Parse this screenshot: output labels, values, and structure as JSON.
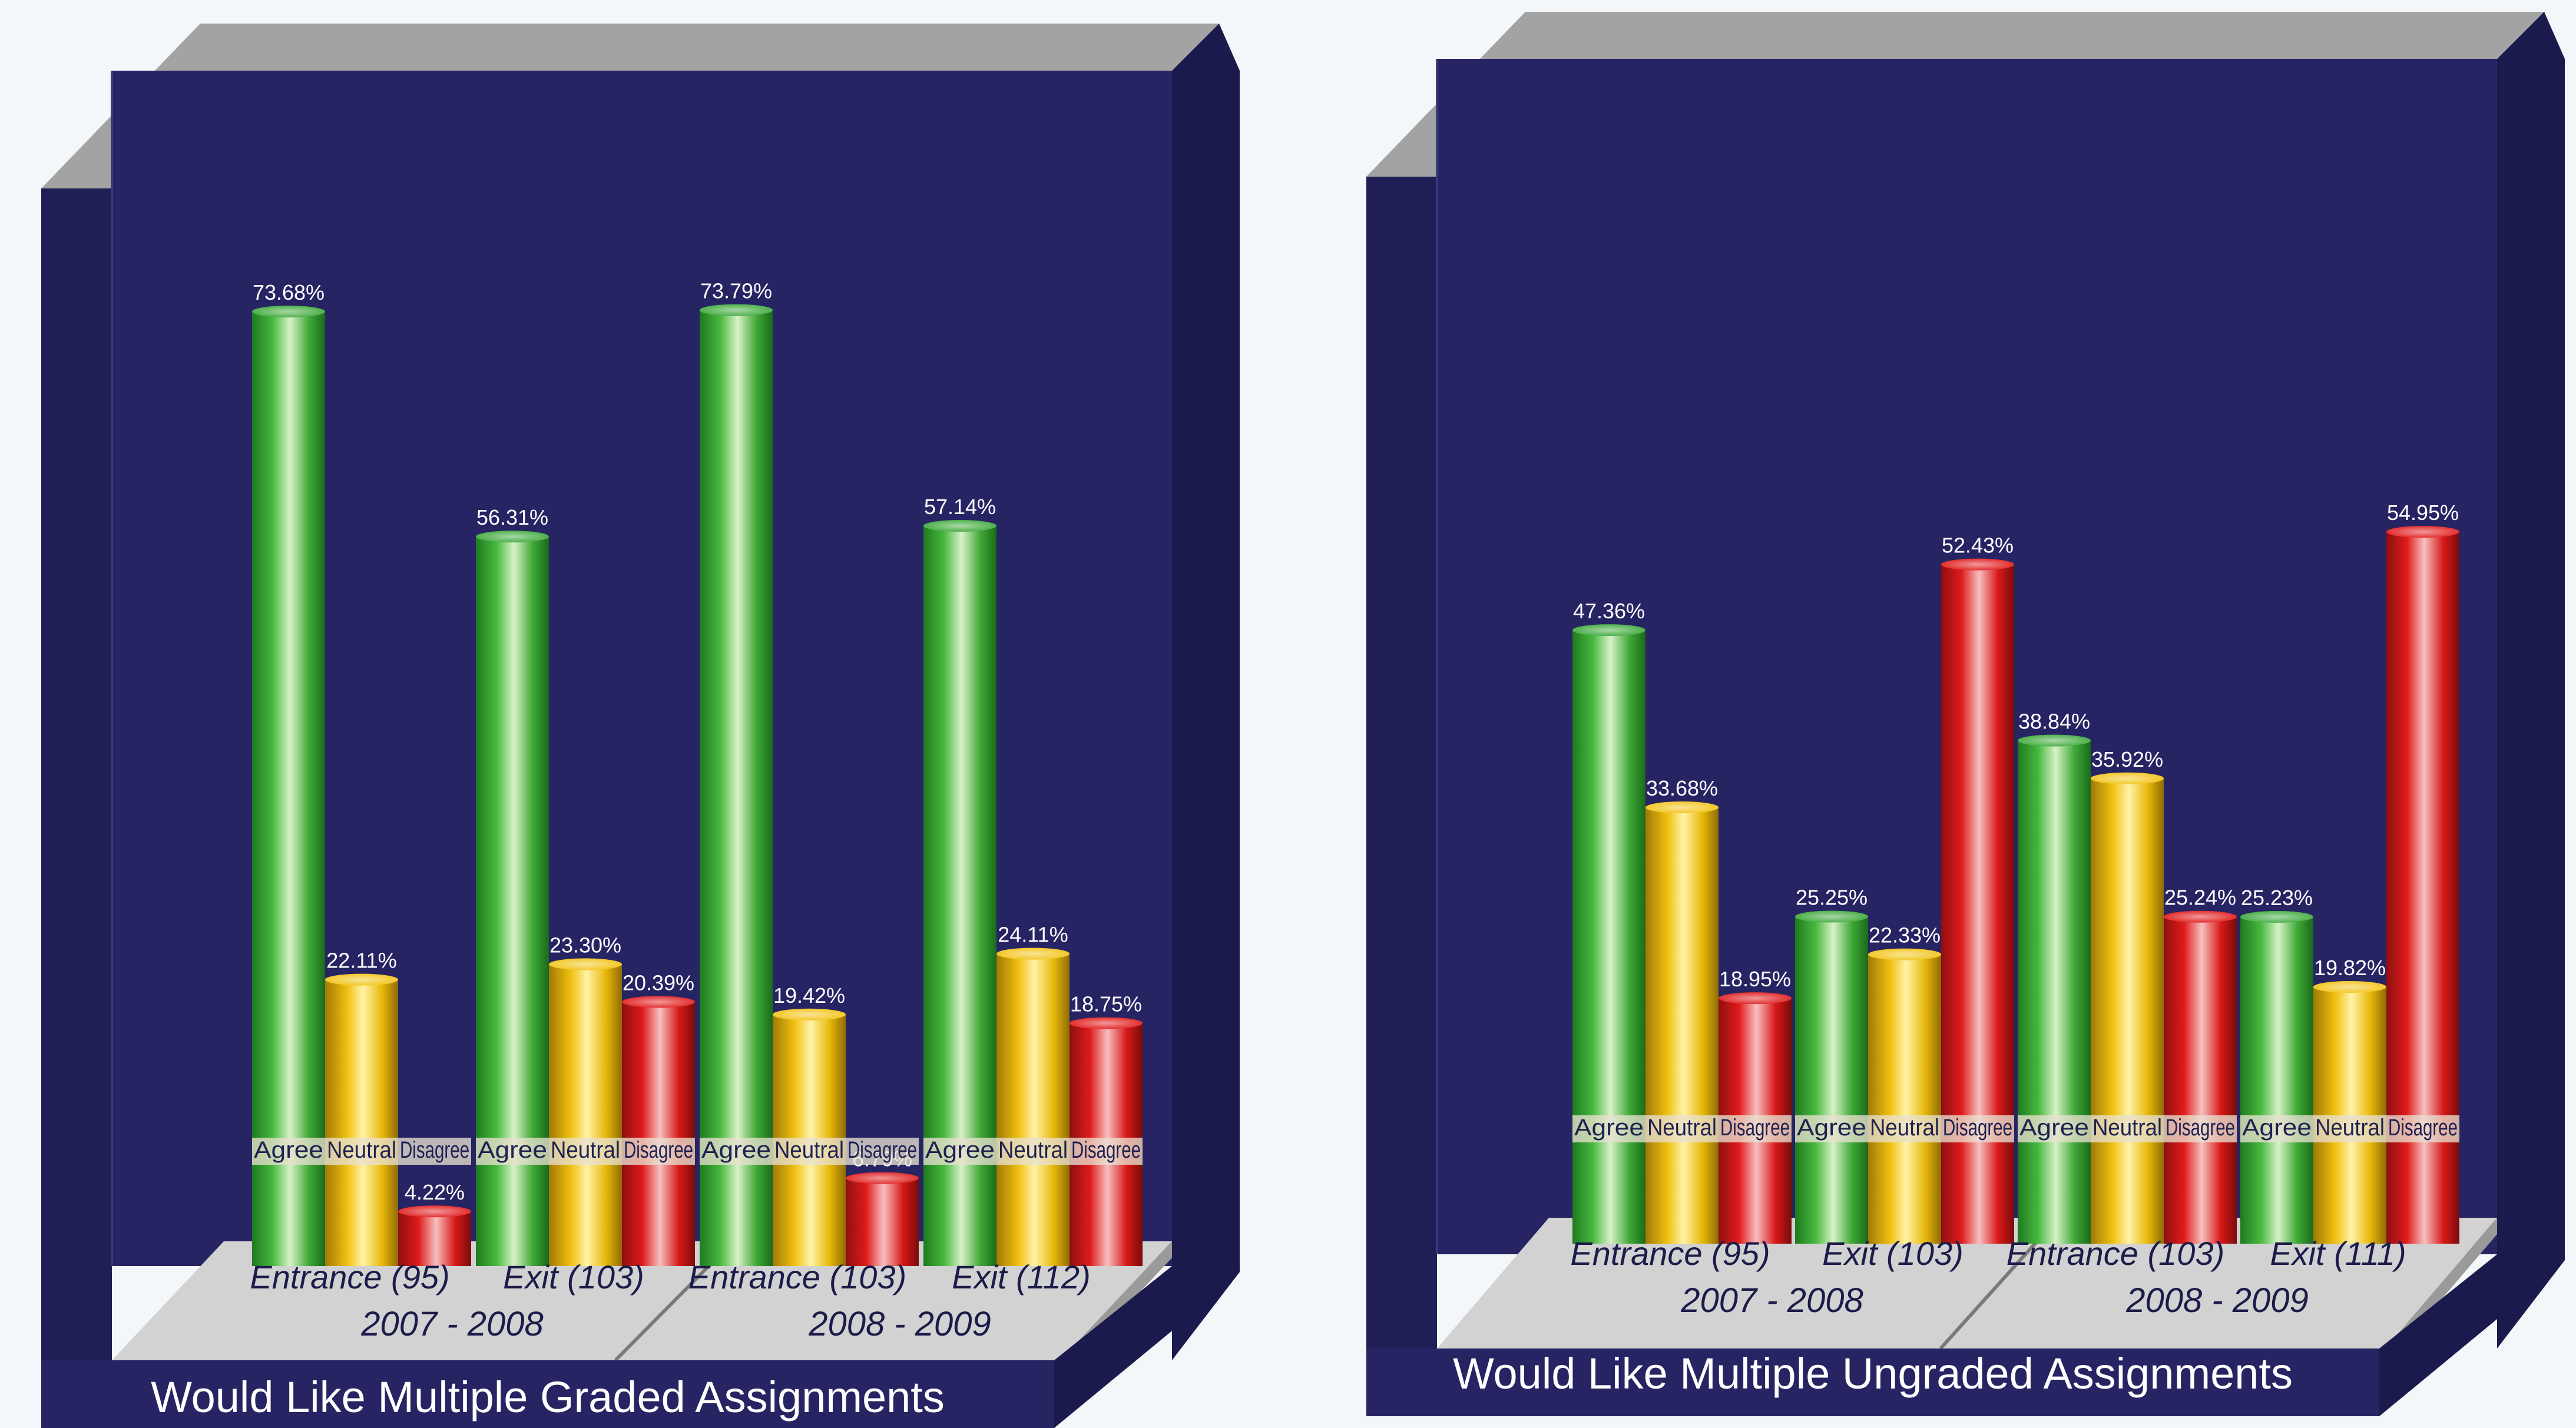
{
  "colors": {
    "background": "#f4f7f9",
    "panel": "#262463",
    "panel_side": "#1b1a4d",
    "frame_top": "#a3a3a3",
    "floor": "#d2d2d2",
    "agree": "#3da83a",
    "neutral": "#f2c316",
    "disagree": "#e01b1b"
  },
  "legend_tags": [
    "Agree",
    "Neutral",
    "Disagree"
  ],
  "chart_data": [
    {
      "type": "bar",
      "title": "Would Like Multiple Graded Assignments",
      "categories": [
        "Entrance (95)",
        "Exit (103)",
        "Entrance (103)",
        "Exit (112)"
      ],
      "periods": [
        "2007 - 2008",
        "2008 - 2009"
      ],
      "series": [
        {
          "name": "Agree",
          "values": [
            73.68,
            56.31,
            73.79,
            57.14
          ]
        },
        {
          "name": "Neutral",
          "values": [
            22.11,
            23.3,
            19.42,
            24.11
          ]
        },
        {
          "name": "Disagree",
          "values": [
            4.22,
            20.39,
            6.79,
            18.75
          ]
        }
      ],
      "value_labels": [
        [
          "73.68%",
          "56.31%",
          "73.79%",
          "57.14%"
        ],
        [
          "22.11%",
          "23.30%",
          "19.42%",
          "24.11%"
        ],
        [
          "4.22%",
          "20.39%",
          "6.79%",
          "18.75%"
        ]
      ],
      "ylim": [
        0,
        100
      ]
    },
    {
      "type": "bar",
      "title": "Would Like Multiple Ungraded Assignments",
      "categories": [
        "Entrance (95)",
        "Exit (103)",
        "Entrance (103)",
        "Exit (111)"
      ],
      "periods": [
        "2007 - 2008",
        "2008 - 2009"
      ],
      "series": [
        {
          "name": "Agree",
          "values": [
            47.36,
            25.25,
            38.84,
            25.23
          ]
        },
        {
          "name": "Neutral",
          "values": [
            33.68,
            22.33,
            35.92,
            19.82
          ]
        },
        {
          "name": "Disagree",
          "values": [
            18.95,
            52.43,
            25.24,
            54.95
          ]
        }
      ],
      "value_labels": [
        [
          "47.36%",
          "25.25%",
          "38.84%",
          "25.23%"
        ],
        [
          "33.68%",
          "22.33%",
          "35.92%",
          "19.82%"
        ],
        [
          "18.95%",
          "52.43%",
          "25.24%",
          "54.95%"
        ]
      ],
      "ylim": [
        0,
        100
      ]
    }
  ]
}
